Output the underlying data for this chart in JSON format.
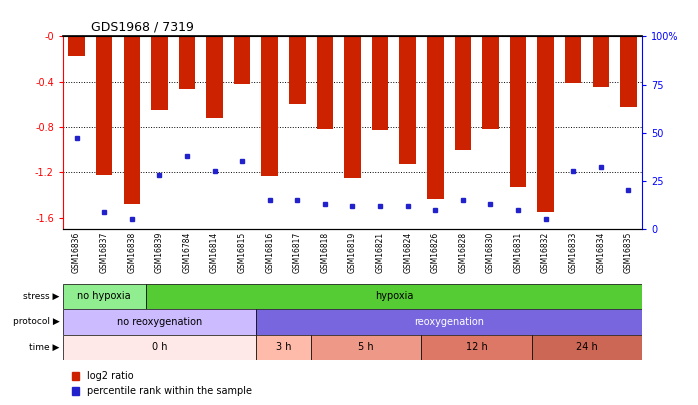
{
  "title": "GDS1968 / 7319",
  "samples": [
    "GSM16836",
    "GSM16837",
    "GSM16838",
    "GSM16839",
    "GSM16784",
    "GSM16814",
    "GSM16815",
    "GSM16816",
    "GSM16817",
    "GSM16818",
    "GSM16819",
    "GSM16821",
    "GSM16824",
    "GSM16826",
    "GSM16828",
    "GSM16830",
    "GSM16831",
    "GSM16832",
    "GSM16833",
    "GSM16834",
    "GSM16835"
  ],
  "log2_ratio": [
    -0.17,
    -1.22,
    -1.48,
    -0.65,
    -0.46,
    -0.72,
    -0.42,
    -1.23,
    -0.6,
    -0.82,
    -1.25,
    -0.83,
    -1.13,
    -1.44,
    -1.0,
    -0.82,
    -1.33,
    -1.55,
    -0.41,
    -0.45,
    -0.62
  ],
  "percentile": [
    47,
    9,
    5,
    28,
    38,
    30,
    35,
    15,
    15,
    13,
    12,
    12,
    12,
    10,
    15,
    13,
    10,
    5,
    30,
    32,
    20
  ],
  "bar_color": "#CC2200",
  "dot_color": "#2222CC",
  "ylim_left": [
    -1.7,
    0.0
  ],
  "ylim_right": [
    0,
    100
  ],
  "yticks_left": [
    0.0,
    -0.4,
    -0.8,
    -1.2,
    -1.6
  ],
  "yticks_right": [
    0,
    25,
    50,
    75,
    100
  ],
  "stress_groups": [
    {
      "label": "no hypoxia",
      "start": 0,
      "end": 3,
      "color": "#90EE90"
    },
    {
      "label": "hypoxia",
      "start": 3,
      "end": 21,
      "color": "#55CC33"
    }
  ],
  "protocol_groups": [
    {
      "label": "no reoxygenation",
      "start": 0,
      "end": 7,
      "color": "#CCBBFF"
    },
    {
      "label": "reoxygenation",
      "start": 7,
      "end": 21,
      "color": "#7766DD"
    }
  ],
  "time_groups": [
    {
      "label": "0 h",
      "start": 0,
      "end": 7,
      "color": "#FFE8E8"
    },
    {
      "label": "3 h",
      "start": 7,
      "end": 9,
      "color": "#FFBBAA"
    },
    {
      "label": "5 h",
      "start": 9,
      "end": 13,
      "color": "#EE9988"
    },
    {
      "label": "12 h",
      "start": 13,
      "end": 17,
      "color": "#DD7766"
    },
    {
      "label": "24 h",
      "start": 17,
      "end": 21,
      "color": "#CC6655"
    }
  ],
  "legend_items": [
    {
      "label": "log2 ratio",
      "color": "#CC2200"
    },
    {
      "label": "percentile rank within the sample",
      "color": "#2222CC"
    }
  ]
}
